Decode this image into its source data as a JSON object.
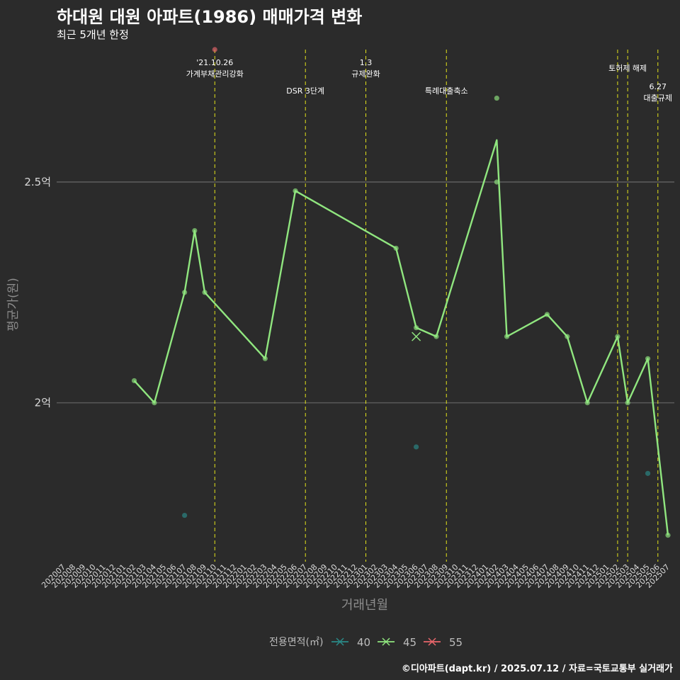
{
  "header": {
    "title": "하대원 대원 아파트(1986) 매매가격 변화",
    "subtitle": "최근 5개년 한정"
  },
  "footer": {
    "caption": "©디아파트(dapt.kr) / 2025.07.12 / 자료=국토교통부 실거래가"
  },
  "chart_data": {
    "type": "line",
    "xlabel": "거래년월",
    "ylabel": "평균가(원)",
    "ylim": [
      1.64,
      2.8
    ],
    "y_unit": "억",
    "y_ticks": [
      {
        "value": 2.0,
        "label": "2억"
      },
      {
        "value": 2.5,
        "label": "2.5억"
      }
    ],
    "grid": true,
    "categories": [
      "202007",
      "202008",
      "202009",
      "202010",
      "202011",
      "202012",
      "202101",
      "202102",
      "202103",
      "202104",
      "202105",
      "202106",
      "202107",
      "202108",
      "202109",
      "202110",
      "202111",
      "202112",
      "202201",
      "202202",
      "202203",
      "202204",
      "202205",
      "202206",
      "202207",
      "202208",
      "202209",
      "202210",
      "202211",
      "202212",
      "202301",
      "202302",
      "202303",
      "202304",
      "202305",
      "202306",
      "202307",
      "202308",
      "202309",
      "202310",
      "202311",
      "202312",
      "202401",
      "202402",
      "202403",
      "202404",
      "202405",
      "202406",
      "202407",
      "202408",
      "202409",
      "202410",
      "202411",
      "202412",
      "202501",
      "202502",
      "202503",
      "202504",
      "202505",
      "202506",
      "202507"
    ],
    "legend": {
      "title": "전용면적(㎡)",
      "position": "bottom",
      "entries": [
        {
          "label": "40",
          "color": "#2a8a88"
        },
        {
          "label": "45",
          "color": "#90e67f"
        },
        {
          "label": "55",
          "color": "#e8666b"
        }
      ]
    },
    "series": [
      {
        "name": "45",
        "color": "#90e67f",
        "line": [
          {
            "x": "202102",
            "y": 2.05
          },
          {
            "x": "202104",
            "y": 2.0
          },
          {
            "x": "202107",
            "y": 2.25
          },
          {
            "x": "202108",
            "y": 2.39
          },
          {
            "x": "202109",
            "y": 2.25
          },
          {
            "x": "202203",
            "y": 2.1
          },
          {
            "x": "202206",
            "y": 2.48
          },
          {
            "x": "202304",
            "y": 2.35
          },
          {
            "x": "202306",
            "y": 2.17
          },
          {
            "x": "202308",
            "y": 2.15
          },
          {
            "x": "202402",
            "y": 2.595
          },
          {
            "x": "202403",
            "y": 2.15
          },
          {
            "x": "202407",
            "y": 2.2
          },
          {
            "x": "202409",
            "y": 2.15
          },
          {
            "x": "202411",
            "y": 2.0
          },
          {
            "x": "202502",
            "y": 2.15
          },
          {
            "x": "202503",
            "y": 2.0
          },
          {
            "x": "202505",
            "y": 2.1
          },
          {
            "x": "202507",
            "y": 1.7
          }
        ],
        "points": [
          {
            "x": "202102",
            "y": 2.05
          },
          {
            "x": "202104",
            "y": 2.0
          },
          {
            "x": "202107",
            "y": 2.25
          },
          {
            "x": "202108",
            "y": 2.39
          },
          {
            "x": "202109",
            "y": 2.25
          },
          {
            "x": "202203",
            "y": 2.1
          },
          {
            "x": "202206",
            "y": 2.48
          },
          {
            "x": "202304",
            "y": 2.35
          },
          {
            "x": "202306",
            "y": 2.17
          },
          {
            "x": "202308",
            "y": 2.15
          },
          {
            "x": "202402",
            "y": 2.69
          },
          {
            "x": "202402",
            "y": 2.5
          },
          {
            "x": "202403",
            "y": 2.15
          },
          {
            "x": "202407",
            "y": 2.2
          },
          {
            "x": "202409",
            "y": 2.15
          },
          {
            "x": "202411",
            "y": 2.0
          },
          {
            "x": "202502",
            "y": 2.15
          },
          {
            "x": "202503",
            "y": 2.0
          },
          {
            "x": "202505",
            "y": 2.1
          },
          {
            "x": "202507",
            "y": 1.7
          }
        ],
        "cross": [
          {
            "x": "202306",
            "y": 2.15
          }
        ]
      },
      {
        "name": "40",
        "color": "#2a8a88",
        "points": [
          {
            "x": "202107",
            "y": 1.745
          },
          {
            "x": "202306",
            "y": 1.9
          },
          {
            "x": "202505",
            "y": 1.84
          }
        ]
      },
      {
        "name": "55",
        "color": "#e8666b",
        "points": [
          {
            "x": "202110",
            "y": 2.8
          }
        ]
      }
    ],
    "events": [
      {
        "x": "202110",
        "lines": [
          "'21.10.26",
          "가계부채관리강화"
        ],
        "tier": 0
      },
      {
        "x": "202207",
        "lines": [
          "DSR 3단계"
        ],
        "tier": 2
      },
      {
        "x": "202301",
        "lines": [
          "1.3",
          "규제완화"
        ],
        "tier": 0
      },
      {
        "x": "202309",
        "lines": [
          "특례대출축소"
        ],
        "tier": 2
      },
      {
        "x": "202502",
        "lines": [],
        "tier": 0
      },
      {
        "x": "202503",
        "lines": [
          "토허제 해제"
        ],
        "tier": 1
      },
      {
        "x": "202506",
        "lines": [
          "6.27",
          "대출규제"
        ],
        "tier": 3
      }
    ]
  }
}
